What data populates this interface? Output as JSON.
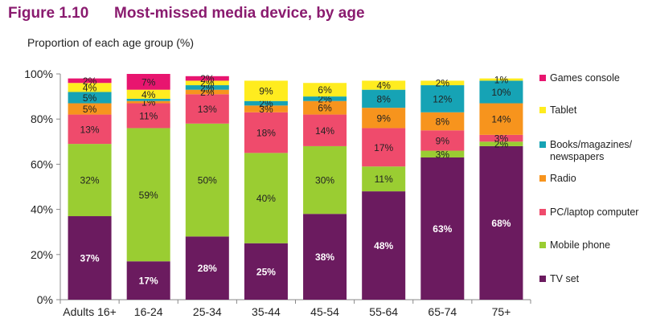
{
  "figure_number": "Figure 1.10",
  "title": "Most-missed media device, by age",
  "chart_data": {
    "type": "bar",
    "stacked": true,
    "ylabel": "Proportion of each age group (%)",
    "xlabel": "",
    "ylim": [
      0,
      100
    ],
    "yticks": [
      "0%",
      "20%",
      "40%",
      "60%",
      "80%",
      "100%"
    ],
    "grid": false,
    "legend_position": "right",
    "categories": [
      "Adults 16+",
      "16-24",
      "25-34",
      "35-44",
      "45-54",
      "55-64",
      "65-74",
      "75+"
    ],
    "series": [
      {
        "name": "TV set",
        "color": "#6b1b5f",
        "values": [
          37,
          17,
          28,
          25,
          38,
          48,
          63,
          68
        ],
        "labels": [
          "37%",
          "17%",
          "28%",
          "25%",
          "38%",
          "48%",
          "63%",
          "68%"
        ]
      },
      {
        "name": "Mobile phone",
        "color": "#9acd32",
        "values": [
          32,
          59,
          50,
          40,
          30,
          11,
          3,
          2
        ],
        "labels": [
          "32%",
          "59%",
          "50%",
          "40%",
          "30%",
          "11%",
          "3%",
          "2%"
        ]
      },
      {
        "name": "PC/laptop computer",
        "color": "#ef4b6c",
        "values": [
          13,
          11,
          13,
          18,
          14,
          17,
          9,
          3
        ],
        "labels": [
          "13%",
          "11%",
          "13%",
          "18%",
          "14%",
          "17%",
          "9%",
          "3%"
        ]
      },
      {
        "name": "Radio",
        "color": "#f7941d",
        "values": [
          5,
          1,
          2,
          3,
          6,
          9,
          8,
          14
        ],
        "labels": [
          "5%",
          "1%",
          "2%",
          "3%",
          "6%",
          "9%",
          "8%",
          "14%"
        ]
      },
      {
        "name": "Books/magazines/newspapers",
        "color": "#16a3b5",
        "values": [
          5,
          1,
          2,
          2,
          2,
          8,
          12,
          10
        ],
        "labels": [
          "5%",
          "",
          "2%",
          "2%",
          "2%",
          "8%",
          "12%",
          "10%"
        ]
      },
      {
        "name": "Tablet",
        "color": "#ffec1f",
        "values": [
          4,
          4,
          2,
          9,
          6,
          4,
          2,
          1
        ],
        "labels": [
          "4%",
          "4%",
          "2%",
          "9%",
          "6%",
          "4%",
          "2%",
          "1%"
        ]
      },
      {
        "name": "Games console",
        "color": "#e8156f",
        "values": [
          2,
          7,
          2,
          0,
          0,
          0,
          0,
          0
        ],
        "labels": [
          "2%",
          "7%",
          "2%",
          "",
          "",
          "",
          "",
          ""
        ]
      }
    ],
    "legend": [
      {
        "label": "Games console",
        "color": "#e8156f"
      },
      {
        "label": "Tablet",
        "color": "#ffec1f"
      },
      {
        "label": "Books/magazines/ newspapers",
        "color": "#16a3b5"
      },
      {
        "label": "Radio",
        "color": "#f7941d"
      },
      {
        "label": "PC/laptop computer",
        "color": "#ef4b6c"
      },
      {
        "label": "Mobile phone",
        "color": "#9acd32"
      },
      {
        "label": "TV set",
        "color": "#6b1b5f"
      }
    ]
  }
}
